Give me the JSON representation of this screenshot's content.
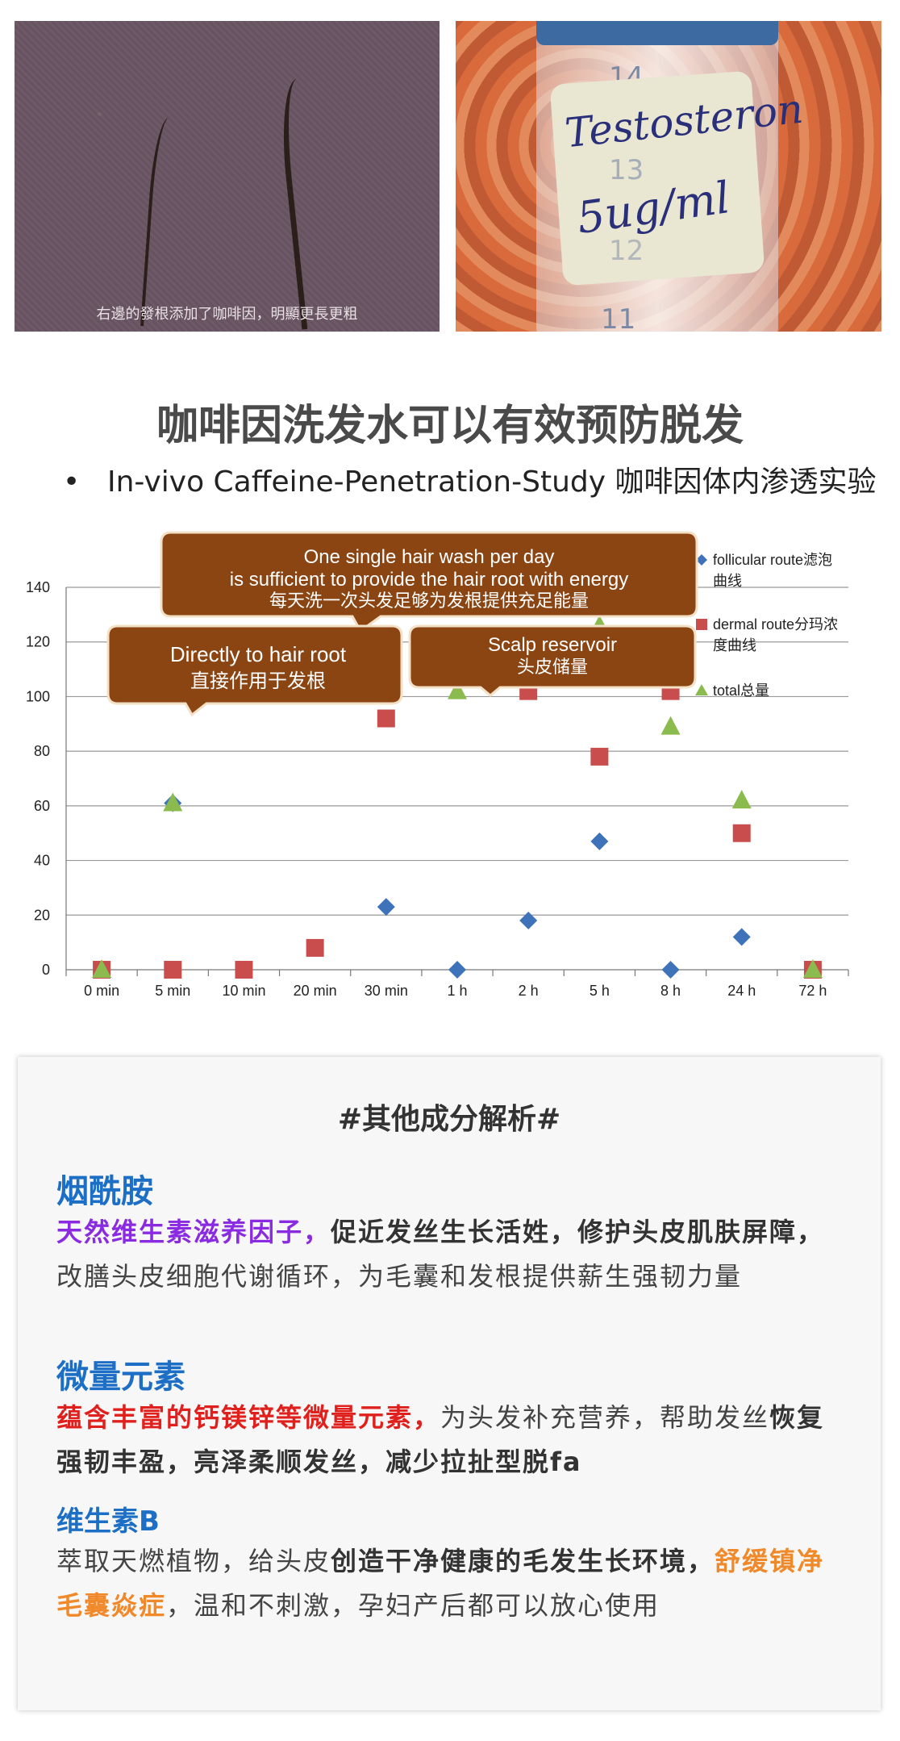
{
  "photos": {
    "left_caption": "右邊的發根添加了咖啡因，明顯更長更粗",
    "right_label_line1": "Testosteron",
    "right_label_line2": "5ug/ml",
    "right_grad_top": "14",
    "right_grad_mid": "13",
    "right_grad_low": "12",
    "right_grad_bottom": "11"
  },
  "heading": "咖啡因洗发水可以有效预防脱发",
  "subtitle": {
    "bullet": "•",
    "text": "In-vivo Caffeine-Penetration-Study 咖啡因体内渗透实验"
  },
  "callouts": {
    "top_line1": "One single hair wash per day",
    "top_line2": "is sufficient to provide the hair root with energy",
    "top_line3": "每天洗一次头发足够为发根提供充足能量",
    "left_line1": "Directly to hair root",
    "left_line2": "直接作用于发根",
    "right_line1": "Scalp reservoir",
    "right_line2": "头皮储量",
    "color": "#8b4513"
  },
  "chart_data": {
    "type": "scatter",
    "categories": [
      "0 min",
      "5 min",
      "10 min",
      "20 min",
      "30 min",
      "1 h",
      "2 h",
      "5 h",
      "8 h",
      "24 h",
      "72 h"
    ],
    "ylim": [
      0,
      140
    ],
    "yticks": [
      0,
      20,
      40,
      60,
      80,
      100,
      120,
      140
    ],
    "grid": true,
    "legend_position": "right",
    "series": [
      {
        "name": "follicular route滤泡曲线",
        "legend_line1": "follicular route滤泡",
        "legend_line2": "曲线",
        "marker": "diamond",
        "color": "#3e73b9",
        "values": [
          0,
          61,
          null,
          null,
          23,
          0,
          18,
          47,
          0,
          12,
          null
        ]
      },
      {
        "name": "dermal route分玛浓度曲线",
        "legend_line1": "dermal route分玛浓",
        "legend_line2": "度曲线",
        "marker": "square",
        "color": "#c94d4d",
        "values": [
          0,
          0,
          0,
          8,
          92,
          null,
          102,
          78,
          102,
          50,
          0
        ]
      },
      {
        "name": "total总量",
        "legend_line1": "total总量",
        "legend_line2": "",
        "marker": "triangle",
        "color": "#8bbb4e",
        "values": [
          0,
          61,
          null,
          null,
          null,
          102,
          null,
          126,
          89,
          62,
          0
        ]
      }
    ]
  },
  "card": {
    "title": "#其他成分解析#",
    "s1_heading": "烟酰胺",
    "s1_purple": "天然维生素滋养因子，",
    "s1_bold": "促近发丝生长活姓，修护头皮肌肤屏障，",
    "s1_plain": "改膳头皮细胞代谢循环，为毛囊和发根提供薪生强韧力量",
    "s2_heading": "微量元素",
    "s2_red": "蕴含丰富的钙镁锌等微量元素，",
    "s2_plain1": "为头发补充营养，帮助发丝",
    "s2_bold": "恢复强韧丰盈，亮泽柔顺发丝，减少拉扯型脱fa",
    "s3_heading": "维生素B",
    "s3_plain1": "萃取天燃植物，给头皮",
    "s3_bold": "创造干净健康的毛发生长环境，",
    "s3_orange": "舒缓镇净毛囊焱症",
    "s3_plain2": "，温和不刺激，孕妇产后都可以放心使用"
  }
}
